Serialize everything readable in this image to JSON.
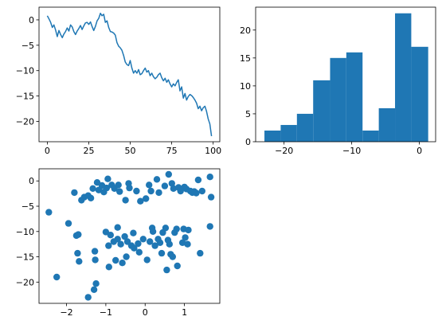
{
  "colors": {
    "series": "#1f77b4",
    "axis": "#000000",
    "background": "#ffffff"
  },
  "chart_data": [
    {
      "type": "line",
      "xlim": [
        -5,
        104
      ],
      "ylim": [
        -24,
        2.5
      ],
      "xticks": [
        0,
        25,
        50,
        75,
        100
      ],
      "yticks": [
        0,
        -5,
        -10,
        -15,
        -20
      ],
      "grid": false,
      "x": [
        0,
        1,
        2,
        3,
        4,
        5,
        6,
        7,
        8,
        9,
        10,
        11,
        12,
        13,
        14,
        15,
        16,
        17,
        18,
        19,
        20,
        21,
        22,
        23,
        24,
        25,
        26,
        27,
        28,
        29,
        30,
        31,
        32,
        33,
        34,
        35,
        36,
        37,
        38,
        39,
        40,
        41,
        42,
        43,
        44,
        45,
        46,
        47,
        48,
        49,
        50,
        51,
        52,
        53,
        54,
        55,
        56,
        57,
        58,
        59,
        60,
        61,
        62,
        63,
        64,
        65,
        66,
        67,
        68,
        69,
        70,
        71,
        72,
        73,
        74,
        75,
        76,
        77,
        78,
        79,
        80,
        81,
        82,
        83,
        84,
        85,
        86,
        87,
        88,
        89,
        90,
        91,
        92,
        93,
        94,
        95,
        96,
        97,
        98,
        99
      ],
      "y": [
        0.8,
        0.2,
        -0.5,
        -1.5,
        -1.0,
        -2.0,
        -3.3,
        -2.1,
        -2.9,
        -3.5,
        -2.8,
        -2.3,
        -1.6,
        -2.2,
        -1.0,
        -1.4,
        -2.3,
        -2.9,
        -2.2,
        -1.7,
        -1.1,
        -1.9,
        -1.2,
        -0.6,
        -0.5,
        -0.9,
        -0.4,
        -1.3,
        -2.1,
        -1.3,
        -0.2,
        0.3,
        1.3,
        0.8,
        1.1,
        -0.5,
        -0.2,
        -1.5,
        -2.3,
        -2.4,
        -2.6,
        -3.0,
        -4.5,
        -5.2,
        -5.5,
        -6.0,
        -7.0,
        -8.3,
        -8.8,
        -9.0,
        -8.0,
        -9.5,
        -10.5,
        -10.0,
        -10.5,
        -9.8,
        -10.8,
        -10.6,
        -10.0,
        -9.5,
        -10.3,
        -10.0,
        -11.0,
        -10.5,
        -11.2,
        -11.6,
        -11.3,
        -10.8,
        -10.5,
        -11.4,
        -12.0,
        -11.5,
        -12.3,
        -11.8,
        -12.6,
        -13.2,
        -12.6,
        -13.0,
        -12.3,
        -11.8,
        -14.0,
        -13.2,
        -15.4,
        -14.5,
        -15.8,
        -15.1,
        -14.7,
        -14.9,
        -15.3,
        -15.8,
        -16.4,
        -17.5,
        -17.0,
        -17.9,
        -17.3,
        -17.0,
        -18.0,
        -19.5,
        -20.5,
        -22.9
      ]
    },
    {
      "type": "bar",
      "subtype": "histogram",
      "xlim": [
        -24.2,
        2.4
      ],
      "ylim": [
        0,
        24.1
      ],
      "xticks": [
        -20,
        -10,
        0
      ],
      "yticks": [
        0,
        5,
        10,
        15,
        20
      ],
      "grid": false,
      "bins": [
        {
          "from": -22.9,
          "to": -20.5,
          "count": 2
        },
        {
          "from": -20.5,
          "to": -18.1,
          "count": 3
        },
        {
          "from": -18.1,
          "to": -15.7,
          "count": 5
        },
        {
          "from": -15.7,
          "to": -13.2,
          "count": 11
        },
        {
          "from": -13.2,
          "to": -10.8,
          "count": 15
        },
        {
          "from": -10.8,
          "to": -8.4,
          "count": 16
        },
        {
          "from": -8.4,
          "to": -6.0,
          "count": 2
        },
        {
          "from": -6.0,
          "to": -3.6,
          "count": 6
        },
        {
          "from": -3.6,
          "to": -1.2,
          "count": 23
        },
        {
          "from": -1.2,
          "to": 1.3,
          "count": 17
        }
      ]
    },
    {
      "type": "scatter",
      "xlim": [
        -2.7,
        1.9
      ],
      "ylim": [
        -24.2,
        2.4
      ],
      "xticks": [
        -2,
        -1,
        0,
        1
      ],
      "yticks": [
        0,
        -5,
        -10,
        -15,
        -20
      ],
      "grid": false,
      "points": [
        [
          -2.45,
          -6.2
        ],
        [
          -2.25,
          -19.0
        ],
        [
          -1.95,
          -8.4
        ],
        [
          -1.8,
          -2.3
        ],
        [
          -1.75,
          -10.8
        ],
        [
          -1.72,
          -14.3
        ],
        [
          -1.7,
          -10.6
        ],
        [
          -1.68,
          -15.9
        ],
        [
          -1.62,
          -3.8
        ],
        [
          -1.55,
          -3.2
        ],
        [
          -1.45,
          -2.9
        ],
        [
          -1.45,
          -23.0
        ],
        [
          -1.38,
          -3.4
        ],
        [
          -1.33,
          -1.5
        ],
        [
          -1.3,
          -21.5
        ],
        [
          -1.28,
          -13.9
        ],
        [
          -1.27,
          -15.6
        ],
        [
          -1.25,
          -20.3
        ],
        [
          -1.22,
          -0.3
        ],
        [
          -1.18,
          -1.8
        ],
        [
          -1.1,
          -0.9
        ],
        [
          -1.05,
          -2.2
        ],
        [
          -1.0,
          -10.1
        ],
        [
          -0.98,
          -1.4
        ],
        [
          -0.95,
          0.4
        ],
        [
          -0.93,
          -12.8
        ],
        [
          -0.92,
          -17.0
        ],
        [
          -0.88,
          -10.7
        ],
        [
          -0.85,
          -0.8
        ],
        [
          -0.8,
          -12.0
        ],
        [
          -0.78,
          -1.5
        ],
        [
          -0.75,
          -15.7
        ],
        [
          -0.7,
          -9.2
        ],
        [
          -0.7,
          -11.5
        ],
        [
          -0.68,
          -0.8
        ],
        [
          -0.65,
          -2.1
        ],
        [
          -0.62,
          -12.5
        ],
        [
          -0.58,
          -16.2
        ],
        [
          -0.52,
          -11.0
        ],
        [
          -0.5,
          -3.8
        ],
        [
          -0.48,
          -15.0
        ],
        [
          -0.45,
          -12.0
        ],
        [
          -0.42,
          -0.5
        ],
        [
          -0.4,
          -1.4
        ],
        [
          -0.35,
          -12.8
        ],
        [
          -0.3,
          -10.3
        ],
        [
          -0.28,
          -13.3
        ],
        [
          -0.22,
          -2.0
        ],
        [
          -0.18,
          -12.4
        ],
        [
          -0.15,
          -14.1
        ],
        [
          -0.12,
          -4.0
        ],
        [
          -0.05,
          -11.5
        ],
        [
          0.02,
          -3.5
        ],
        [
          0.05,
          -15.6
        ],
        [
          0.1,
          -0.8
        ],
        [
          0.12,
          -12.0
        ],
        [
          0.15,
          -2.0
        ],
        [
          0.18,
          -9.3
        ],
        [
          0.2,
          -10.0
        ],
        [
          0.25,
          -12.8
        ],
        [
          0.3,
          0.3
        ],
        [
          0.33,
          -11.5
        ],
        [
          0.35,
          -2.3
        ],
        [
          0.38,
          -12.2
        ],
        [
          0.42,
          -14.3
        ],
        [
          0.45,
          -10.2
        ],
        [
          0.5,
          -1.0
        ],
        [
          0.52,
          -9.3
        ],
        [
          0.55,
          -17.6
        ],
        [
          0.58,
          -11.7
        ],
        [
          0.6,
          1.3
        ],
        [
          0.62,
          -12.5
        ],
        [
          0.65,
          -14.5
        ],
        [
          0.68,
          -0.5
        ],
        [
          0.7,
          -15.0
        ],
        [
          0.72,
          -1.5
        ],
        [
          0.75,
          -10.2
        ],
        [
          0.8,
          -9.5
        ],
        [
          0.82,
          -16.8
        ],
        [
          0.85,
          -1.3
        ],
        [
          0.9,
          -2.0
        ],
        [
          0.95,
          -12.2
        ],
        [
          0.98,
          -9.5
        ],
        [
          1.0,
          -1.2
        ],
        [
          1.02,
          -11.2
        ],
        [
          1.05,
          -1.6
        ],
        [
          1.08,
          -12.5
        ],
        [
          1.1,
          -9.7
        ],
        [
          1.15,
          -2.0
        ],
        [
          1.2,
          -2.3
        ],
        [
          1.25,
          -2.1
        ],
        [
          1.3,
          -2.4
        ],
        [
          1.35,
          0.2
        ],
        [
          1.4,
          -14.3
        ],
        [
          1.45,
          -2.0
        ],
        [
          1.65,
          0.8
        ],
        [
          1.65,
          -9.0
        ],
        [
          1.68,
          -3.2
        ]
      ]
    }
  ]
}
